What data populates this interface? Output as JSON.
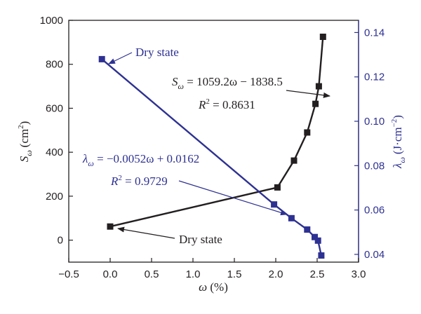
{
  "chart_data": {
    "type": "scatter",
    "x_axis": {
      "label_symbol": "ω",
      "label_unit": " (%)",
      "range": [
        -0.5,
        3.0
      ],
      "ticks": [
        "−0.5",
        "0.0",
        "0.5",
        "1.0",
        "1.5",
        "2.0",
        "2.5",
        "3.0"
      ]
    },
    "y_left": {
      "label_symbol": "S",
      "label_sub": "ω",
      "label_unit": "(cm",
      "label_sup": "2",
      "label_close": ")",
      "range": [
        -100,
        1000
      ],
      "ticks": [
        "0",
        "200",
        "400",
        "600",
        "800",
        "1000"
      ],
      "color": "#231f20"
    },
    "y_right": {
      "label_symbol": "λ",
      "label_sub": "ω",
      "label_unit": "(J·cm",
      "label_sup": "−2",
      "label_close": ")",
      "range": [
        0.0365,
        0.1455
      ],
      "ticks": [
        "0.04",
        "0.06",
        "0.08",
        "0.10",
        "0.12",
        "0.14"
      ],
      "color": "#2e3192"
    },
    "series": [
      {
        "axis": "left",
        "color": "#231f20",
        "points": [
          [
            0.0,
            62
          ],
          [
            2.02,
            240
          ],
          [
            2.22,
            362
          ],
          [
            2.38,
            490
          ],
          [
            2.48,
            620
          ],
          [
            2.52,
            700
          ],
          [
            2.57,
            925
          ]
        ]
      },
      {
        "axis": "right",
        "color": "#2e3192",
        "points": [
          [
            -0.1,
            0.128
          ],
          [
            1.98,
            0.0625
          ],
          [
            2.19,
            0.0563
          ],
          [
            2.38,
            0.0512
          ],
          [
            2.47,
            0.0478
          ],
          [
            2.51,
            0.0462
          ],
          [
            2.55,
            0.0395
          ]
        ]
      }
    ],
    "annotations": {
      "dry_state_top": "Dry state",
      "dry_state_bottom": "Dry state",
      "s_eq_lhs_sym": "S",
      "s_eq_lhs_sub": "ω",
      "s_eq_rhs": " = 1059.2ω − 1838.5",
      "s_r2_sym": "R",
      "s_r2_sup": "2",
      "s_r2_val": " = 0.8631",
      "l_eq_lhs_sym": "λ",
      "l_eq_lhs_sub": "ω",
      "l_eq_rhs": " = −0.0052ω + 0.0162",
      "l_r2_sym": "R",
      "l_r2_sup": "2",
      "l_r2_val": " = 0.9729"
    }
  }
}
